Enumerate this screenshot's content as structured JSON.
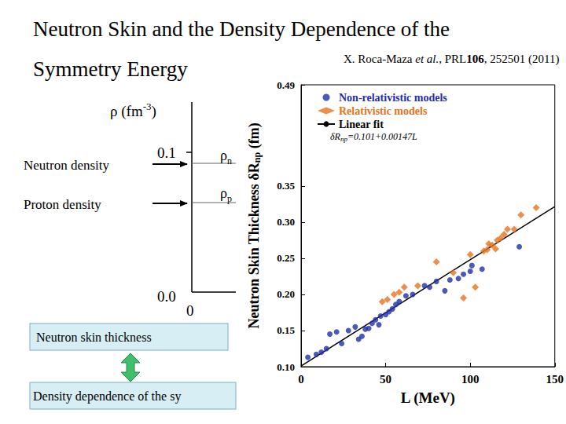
{
  "slide": {
    "title_lines": [
      "Neutron Skin and the Density Dependence of the",
      "Symmetry Energy"
    ],
    "citation": [
      "X. Roca-Maza ",
      "et al.",
      ", PRL",
      "106",
      ", 252501 (2011)"
    ],
    "density_panel": {
      "axis_label": [
        "ρ (fm",
        "-3",
        ")"
      ],
      "y_ticks": [
        "0.1",
        "0.0"
      ],
      "x_tick": "0",
      "neutron": [
        "ρ",
        "n"
      ],
      "proton": [
        "ρ",
        "p"
      ]
    },
    "labels": {
      "neutron_density": "Neutron density",
      "proton_density": "Proton density",
      "skin_box": "Neutron skin thickness",
      "symmetry_box": "Density dependence of the sy"
    }
  },
  "chart_data": {
    "type": "scatter",
    "xlabel": "L (MeV)",
    "ylabel": [
      "Neutron Skin Thickness δR",
      "np",
      " (fm)"
    ],
    "xlim": [
      0,
      150
    ],
    "xticks": [
      0,
      50,
      100,
      150
    ],
    "ylim": [
      0.1,
      0.49
    ],
    "yticks": [
      {
        "value": 0.1,
        "label": "0.10"
      },
      0.15,
      {
        "value": 0.2,
        "label": "0.20"
      },
      0.25,
      {
        "value": 0.3,
        "label": "0.30"
      },
      0.35,
      0.49
    ],
    "legend": "upper left",
    "grid": false,
    "fit_equation": [
      "δR",
      "np",
      "=0.101+0.00147L"
    ],
    "series": [
      {
        "name": "Non-relativistic models",
        "color": "#1f2fa8",
        "marker": "circle",
        "x": [
          4,
          9,
          12,
          15,
          17,
          21,
          24,
          28,
          32,
          34,
          36,
          38,
          40,
          42,
          44,
          46,
          47,
          50,
          52,
          54,
          56,
          58,
          62,
          66,
          73,
          76,
          80,
          85,
          88,
          93,
          96,
          100,
          101,
          107,
          129
        ],
        "values": [
          0.113,
          0.117,
          0.12,
          0.125,
          0.145,
          0.148,
          0.132,
          0.15,
          0.155,
          0.138,
          0.142,
          0.152,
          0.153,
          0.16,
          0.165,
          0.158,
          0.17,
          0.172,
          0.176,
          0.18,
          0.186,
          0.19,
          0.198,
          0.2,
          0.212,
          0.21,
          0.218,
          0.205,
          0.22,
          0.222,
          0.228,
          0.232,
          0.24,
          0.235,
          0.266
        ]
      },
      {
        "name": "Relativistic models",
        "color": "#e8731e",
        "marker": "diamond",
        "x": [
          48,
          51,
          55,
          58,
          61,
          69,
          80,
          90,
          96,
          100,
          103,
          108,
          110,
          111,
          113,
          115,
          116,
          118,
          120,
          122,
          126,
          130,
          139
        ],
        "values": [
          0.19,
          0.193,
          0.2,
          0.203,
          0.21,
          0.212,
          0.245,
          0.23,
          0.195,
          0.255,
          0.21,
          0.26,
          0.262,
          0.27,
          0.268,
          0.263,
          0.275,
          0.278,
          0.283,
          0.29,
          0.29,
          0.31,
          0.32
        ]
      },
      {
        "name": "Linear fit",
        "type": "line",
        "color": "#000000",
        "line_style": "solid",
        "x": [
          0,
          150
        ],
        "values": [
          0.101,
          0.3215
        ]
      }
    ]
  }
}
